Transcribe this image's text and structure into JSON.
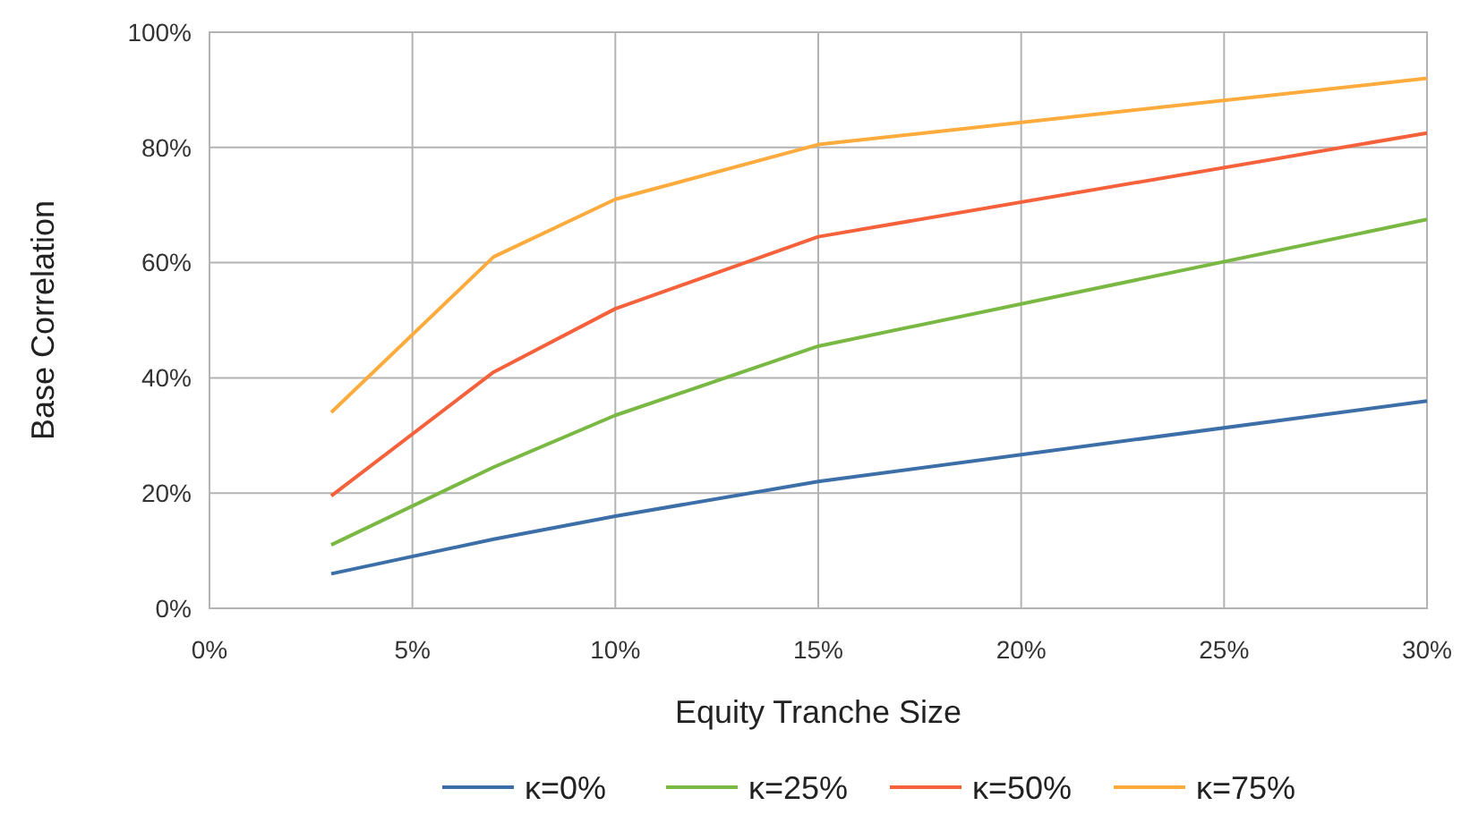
{
  "chart_data": {
    "type": "line",
    "xlabel": "Equity Tranche Size",
    "ylabel": "Base Correlation",
    "x": [
      3,
      7,
      10,
      15,
      30
    ],
    "series": [
      {
        "name": "κ=0%",
        "color": "#3c6ea8",
        "values": [
          6,
          12,
          16,
          22,
          36
        ]
      },
      {
        "name": "κ=25%",
        "color": "#7ab844",
        "values": [
          11,
          24.5,
          33.5,
          45.5,
          67.5
        ]
      },
      {
        "name": "κ=50%",
        "color": "#f5613b",
        "values": [
          19.5,
          41,
          52,
          64.5,
          82.5
        ]
      },
      {
        "name": "κ=75%",
        "color": "#fdab3c",
        "values": [
          34,
          61,
          71,
          80.5,
          92
        ]
      }
    ],
    "xlim": [
      0,
      30
    ],
    "xticks": [
      {
        "value": 0,
        "label": "0%"
      },
      {
        "value": 5,
        "label": "5%"
      },
      {
        "value": 10,
        "label": "10%"
      },
      {
        "value": 15,
        "label": "15%"
      },
      {
        "value": 20,
        "label": "20%"
      },
      {
        "value": 25,
        "label": "25%"
      },
      {
        "value": 30,
        "label": "30%"
      }
    ],
    "ylim": [
      0,
      100
    ],
    "yticks": [
      {
        "value": 0,
        "label": "0%"
      },
      {
        "value": 20,
        "label": "20%"
      },
      {
        "value": 40,
        "label": "40%"
      },
      {
        "value": 60,
        "label": "60%"
      },
      {
        "value": 80,
        "label": "80%"
      },
      {
        "value": 100,
        "label": "100%"
      }
    ],
    "grid": true,
    "legend": "bottom",
    "marker": "none",
    "line_style": "solid"
  }
}
